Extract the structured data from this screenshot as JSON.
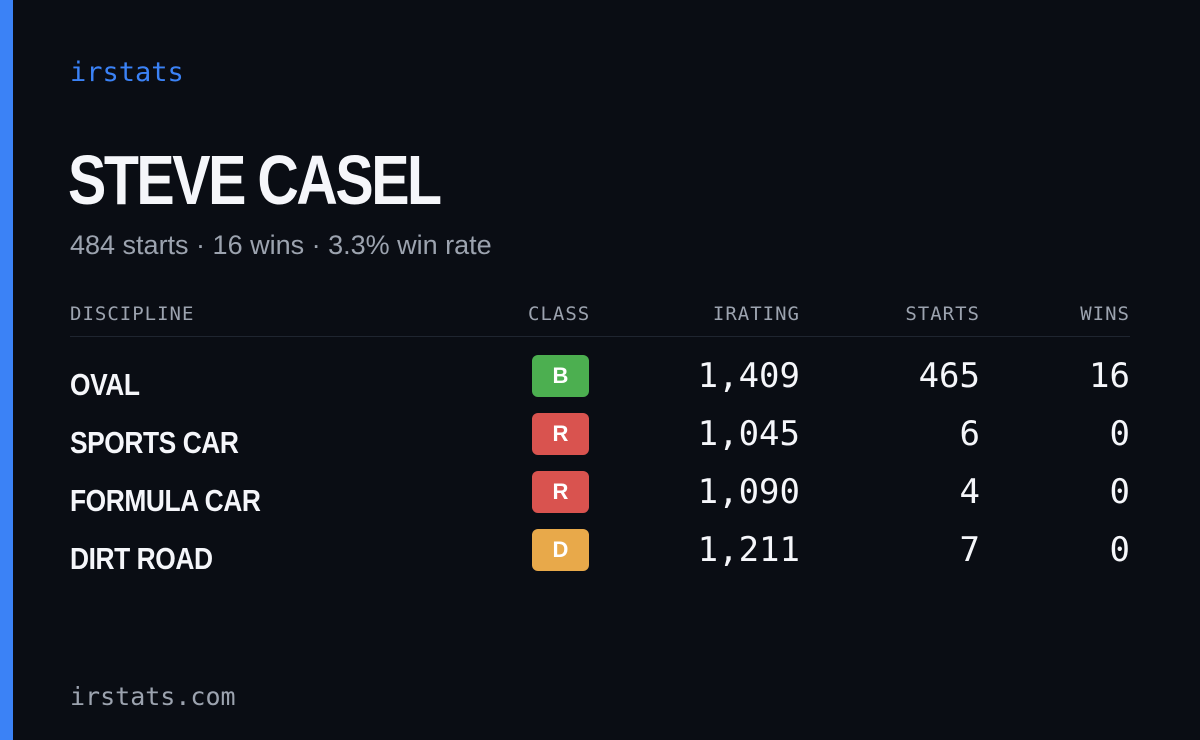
{
  "brand": "irstats",
  "driver": {
    "name": "STEVE CASEL",
    "summary": "484 starts · 16 wins · 3.3% win rate"
  },
  "table": {
    "headers": {
      "discipline": "DISCIPLINE",
      "class": "CLASS",
      "irating": "IRATING",
      "starts": "STARTS",
      "wins": "WINS"
    },
    "rows": [
      {
        "discipline": "OVAL",
        "class": "B",
        "class_color": "#4caf50",
        "irating": "1,409",
        "starts": "465",
        "wins": "16"
      },
      {
        "discipline": "SPORTS CAR",
        "class": "R",
        "class_color": "#d9534f",
        "irating": "1,045",
        "starts": "6",
        "wins": "0"
      },
      {
        "discipline": "FORMULA CAR",
        "class": "R",
        "class_color": "#d9534f",
        "irating": "1,090",
        "starts": "4",
        "wins": "0"
      },
      {
        "discipline": "DIRT ROAD",
        "class": "D",
        "class_color": "#e8a94a",
        "irating": "1,211",
        "starts": "7",
        "wins": "0"
      }
    ]
  },
  "footer": "irstats.com",
  "colors": {
    "background": "#0a0d14",
    "accent": "#3b82f6",
    "muted": "#9ca3af",
    "text": "#f5f6fa"
  }
}
